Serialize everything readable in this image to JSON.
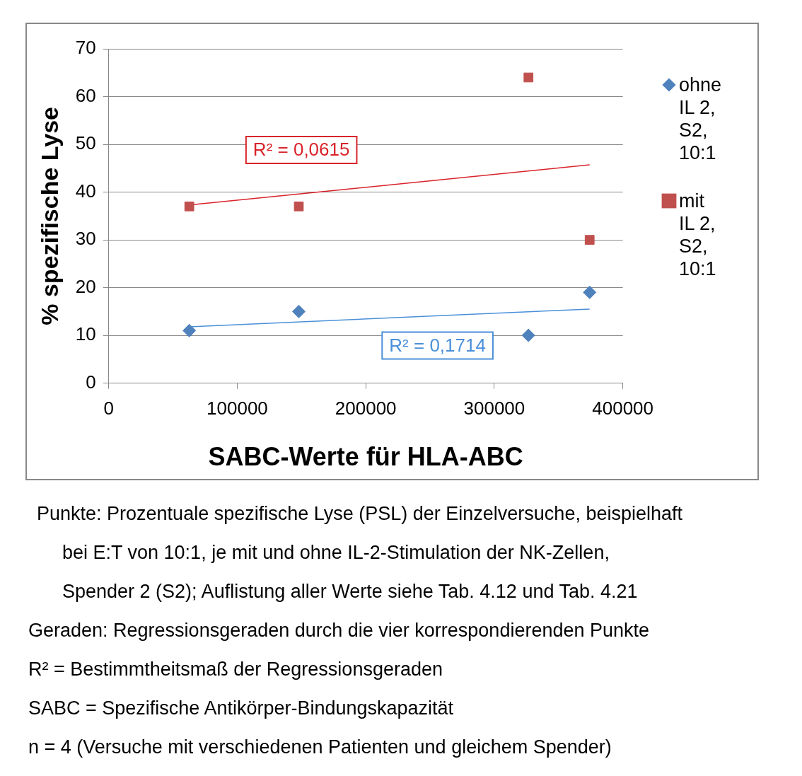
{
  "chart_data": {
    "type": "scatter",
    "xlabel": "SABC-Werte für HLA-ABC",
    "ylabel": "% spezifische Lyse",
    "xlim": [
      0,
      400000
    ],
    "xticks": [
      0,
      100000,
      200000,
      300000,
      400000
    ],
    "ylim": [
      0,
      70
    ],
    "yticks": [
      0,
      10,
      20,
      30,
      40,
      50,
      60,
      70
    ],
    "grid": "y",
    "legend": "right",
    "series": [
      {
        "name": "ohne IL 2, S2, 10:1",
        "color": "#4f81bd",
        "marker": "diamond",
        "x": [
          62700,
          147900,
          326600,
          374200
        ],
        "values": [
          11,
          15,
          10,
          19
        ]
      },
      {
        "name": "mit IL 2, S2, 10:1",
        "color": "#c0504d",
        "marker": "square",
        "x": [
          62700,
          147900,
          326600,
          374200
        ],
        "values": [
          37,
          37,
          64,
          30
        ]
      },
      {
        "type": "line",
        "color": "#d9232a",
        "marker": "none",
        "x": [
          62700,
          374200
        ],
        "values": [
          37.3,
          45.7
        ]
      },
      {
        "type": "line",
        "color": "#4a90d9",
        "marker": "none",
        "x": [
          62700,
          374200
        ],
        "values": [
          11.8,
          15.5
        ]
      }
    ],
    "annotations": [
      "R² = 0,0615",
      "R² = 0,1714",
      "Punkte: Prozentuale spezifische Lyse (PSL) der Einzelversuche, beispielhaft",
      "bei E:T von 10:1, je mit und ohne IL-2-Stimulation der NK-Zellen,",
      "Spender 2 (S2); Auflistung aller Werte siehe Tab. 4.12 und Tab. 4.21",
      "Geraden: Regressionsgeraden durch die vier korrespondierenden Punkte",
      "R² = Bestimmtheitsmaß der Regressionsgeraden",
      "SABC = Spezifische Antikörper-Bindungskapazität",
      "n = 4 (Versuche mit verschiedenen Patienten und gleichem Spender)"
    ]
  }
}
